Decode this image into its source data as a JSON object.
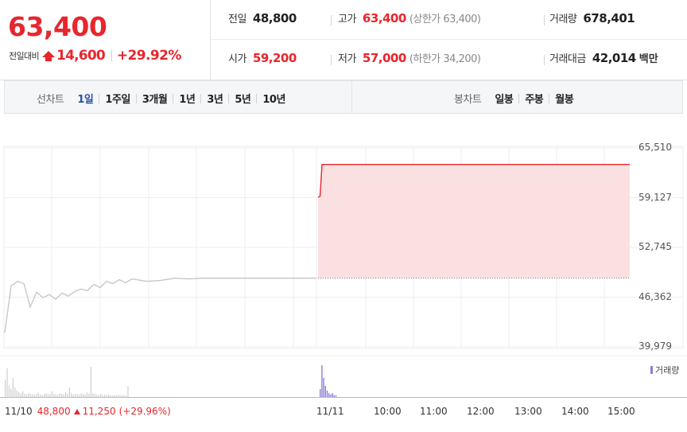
{
  "quote": {
    "price": "63,400",
    "change_label": "전일대비",
    "change_amount": "14,600",
    "change_pct": "+29.92%",
    "prev_close_label": "전일",
    "prev_close": "48,800",
    "high_label": "고가",
    "high": "63,400",
    "upper_limit": "(상한가 63,400)",
    "volume_label": "거래량",
    "volume": "678,401",
    "open_label": "시가",
    "open": "59,200",
    "low_label": "저가",
    "low": "57,000",
    "lower_limit": "(하한가 34,200)",
    "amount_label": "거래대금",
    "amount": "42,014",
    "amount_unit": "백만"
  },
  "tabs": {
    "line_label": "선차트",
    "line_tabs": [
      "1일",
      "1주일",
      "3개월",
      "1년",
      "3년",
      "5년",
      "10년"
    ],
    "active_line_tab": "1일",
    "candle_label": "봉차트",
    "candle_tabs": [
      "일봉",
      "주봉",
      "월봉"
    ]
  },
  "chart_data": {
    "type": "line",
    "y_ticks": [
      "65,510",
      "59,127",
      "52,745",
      "46,362",
      "39,979"
    ],
    "ylim": [
      39979,
      65510
    ],
    "x_ticks": [
      "11/10",
      "11/11",
      "10:00",
      "11:00",
      "12:00",
      "13:00",
      "14:00",
      "15:00"
    ],
    "volume_legend": "거래량",
    "prev_day": {
      "date": "11/10",
      "close": "48,800",
      "change": "11,250",
      "change_pct": "(+29.96%)"
    },
    "series": [
      {
        "segment": "11/10",
        "values": [
          41800,
          47800,
          48400,
          48100,
          45100,
          47000,
          46300,
          46700,
          46100,
          46900,
          46500,
          47100,
          47400,
          47200,
          48000,
          47600,
          48400,
          48100,
          48600,
          48200,
          48700,
          48400,
          48500,
          48800,
          48700,
          48800,
          48800,
          48800,
          48800,
          48800,
          48800,
          48800,
          48800,
          48800
        ]
      },
      {
        "segment": "11/11",
        "values": [
          59200,
          59300,
          63400,
          63400,
          63400,
          63400,
          63400,
          63400,
          63400,
          63400,
          63400,
          63400,
          63400,
          63400,
          63400,
          63400
        ]
      }
    ],
    "prev_close_line": 48800,
    "colors": {
      "day1_line": "#c8c8c8",
      "day2_line": "#e8262d",
      "day2_fill": "#fbe0e2",
      "volume": "#8b7fd6",
      "volume_prev": "#cfcfcf"
    },
    "volume": {
      "day1": [
        0.55,
        0.9,
        0.35,
        0.25,
        0.6,
        0.3,
        0.2,
        0.15,
        0.12,
        0.18,
        0.1,
        0.08,
        0.12,
        0.1,
        0.09,
        0.07,
        0.1,
        0.14,
        0.08,
        0.06,
        0.1,
        0.12,
        0.08,
        0.1,
        0.18,
        0.1,
        0.09,
        0.07,
        0.12,
        0.1,
        0.09,
        0.15,
        0.1,
        0.3,
        0.12,
        0.08,
        0.1,
        0.09,
        0.07,
        0.12,
        0.1,
        0.08,
        0.14,
        0.1,
        0.95,
        0.12,
        0.1,
        0.08,
        0.07,
        0.1,
        0.06,
        0.08,
        0.07,
        0.09,
        0.06,
        0.05,
        0.06,
        0.05,
        0.07,
        0.06,
        0.05,
        0.06,
        0.05,
        0.35
      ],
      "day2": [
        0.25,
        1.0,
        0.6,
        0.35,
        0.2,
        0.12,
        0.08,
        0.12,
        0.06,
        0.05
      ]
    }
  }
}
